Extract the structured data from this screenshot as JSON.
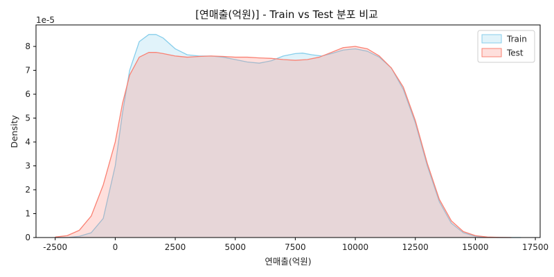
{
  "chart_data": {
    "type": "area",
    "title": "[연매출(억원)] - Train vs Test 분포 비교",
    "xlabel": "연매출(억원)",
    "ylabel": "Density",
    "y_multiplier": "1e-5",
    "xlim": [
      -3300,
      17700
    ],
    "ylim": [
      0,
      8.9
    ],
    "x_ticks": [
      -2500,
      0,
      2500,
      5000,
      7500,
      10000,
      12500,
      15000,
      17500
    ],
    "x_tick_labels": [
      "-2500",
      "0",
      "2500",
      "5000",
      "7500",
      "10000",
      "12500",
      "15000",
      "17500"
    ],
    "y_ticks": [
      0,
      1,
      2,
      3,
      4,
      5,
      6,
      7,
      8
    ],
    "y_tick_labels": [
      "0",
      "1",
      "2",
      "3",
      "4",
      "5",
      "6",
      "7",
      "8"
    ],
    "legend_position": "top-right",
    "grid": false,
    "series": [
      {
        "name": "Train",
        "line_color": "#87ceeb",
        "fill_color": "#87ceeb",
        "x": [
          -2500,
          -2000,
          -1500,
          -1000,
          -500,
          0,
          300,
          600,
          1000,
          1400,
          1700,
          2000,
          2500,
          3000,
          3500,
          4000,
          4500,
          5000,
          5500,
          6000,
          6500,
          7000,
          7500,
          7800,
          8200,
          8600,
          9000,
          9500,
          10000,
          10500,
          11000,
          11500,
          12000,
          12500,
          13000,
          13500,
          14000,
          14500,
          15000,
          15500,
          16000,
          16500,
          16900
        ],
        "y": [
          0,
          0,
          0.05,
          0.2,
          0.8,
          3.0,
          5.2,
          7.0,
          8.2,
          8.5,
          8.5,
          8.35,
          7.9,
          7.65,
          7.6,
          7.6,
          7.55,
          7.45,
          7.35,
          7.3,
          7.4,
          7.6,
          7.7,
          7.72,
          7.65,
          7.6,
          7.7,
          7.85,
          7.9,
          7.8,
          7.55,
          7.1,
          6.2,
          4.8,
          3.0,
          1.5,
          0.6,
          0.2,
          0.05,
          0.01,
          0,
          0,
          0
        ]
      },
      {
        "name": "Test",
        "line_color": "#fa8072",
        "fill_color": "#fa8072",
        "x": [
          -2500,
          -2000,
          -1500,
          -1000,
          -500,
          0,
          300,
          600,
          1000,
          1400,
          1700,
          2000,
          2500,
          3000,
          3500,
          4000,
          4500,
          5000,
          5500,
          6000,
          6500,
          7000,
          7500,
          8000,
          8500,
          9000,
          9500,
          10000,
          10500,
          11000,
          11500,
          12000,
          12500,
          13000,
          13500,
          14000,
          14500,
          15000,
          15500,
          16000,
          16500
        ],
        "y": [
          0.02,
          0.08,
          0.3,
          0.9,
          2.2,
          4.0,
          5.6,
          6.8,
          7.55,
          7.75,
          7.75,
          7.7,
          7.6,
          7.55,
          7.58,
          7.6,
          7.58,
          7.55,
          7.55,
          7.52,
          7.5,
          7.45,
          7.42,
          7.45,
          7.55,
          7.75,
          7.95,
          8.0,
          7.9,
          7.6,
          7.1,
          6.3,
          4.9,
          3.1,
          1.6,
          0.7,
          0.25,
          0.08,
          0.02,
          0.005,
          0
        ]
      }
    ]
  }
}
